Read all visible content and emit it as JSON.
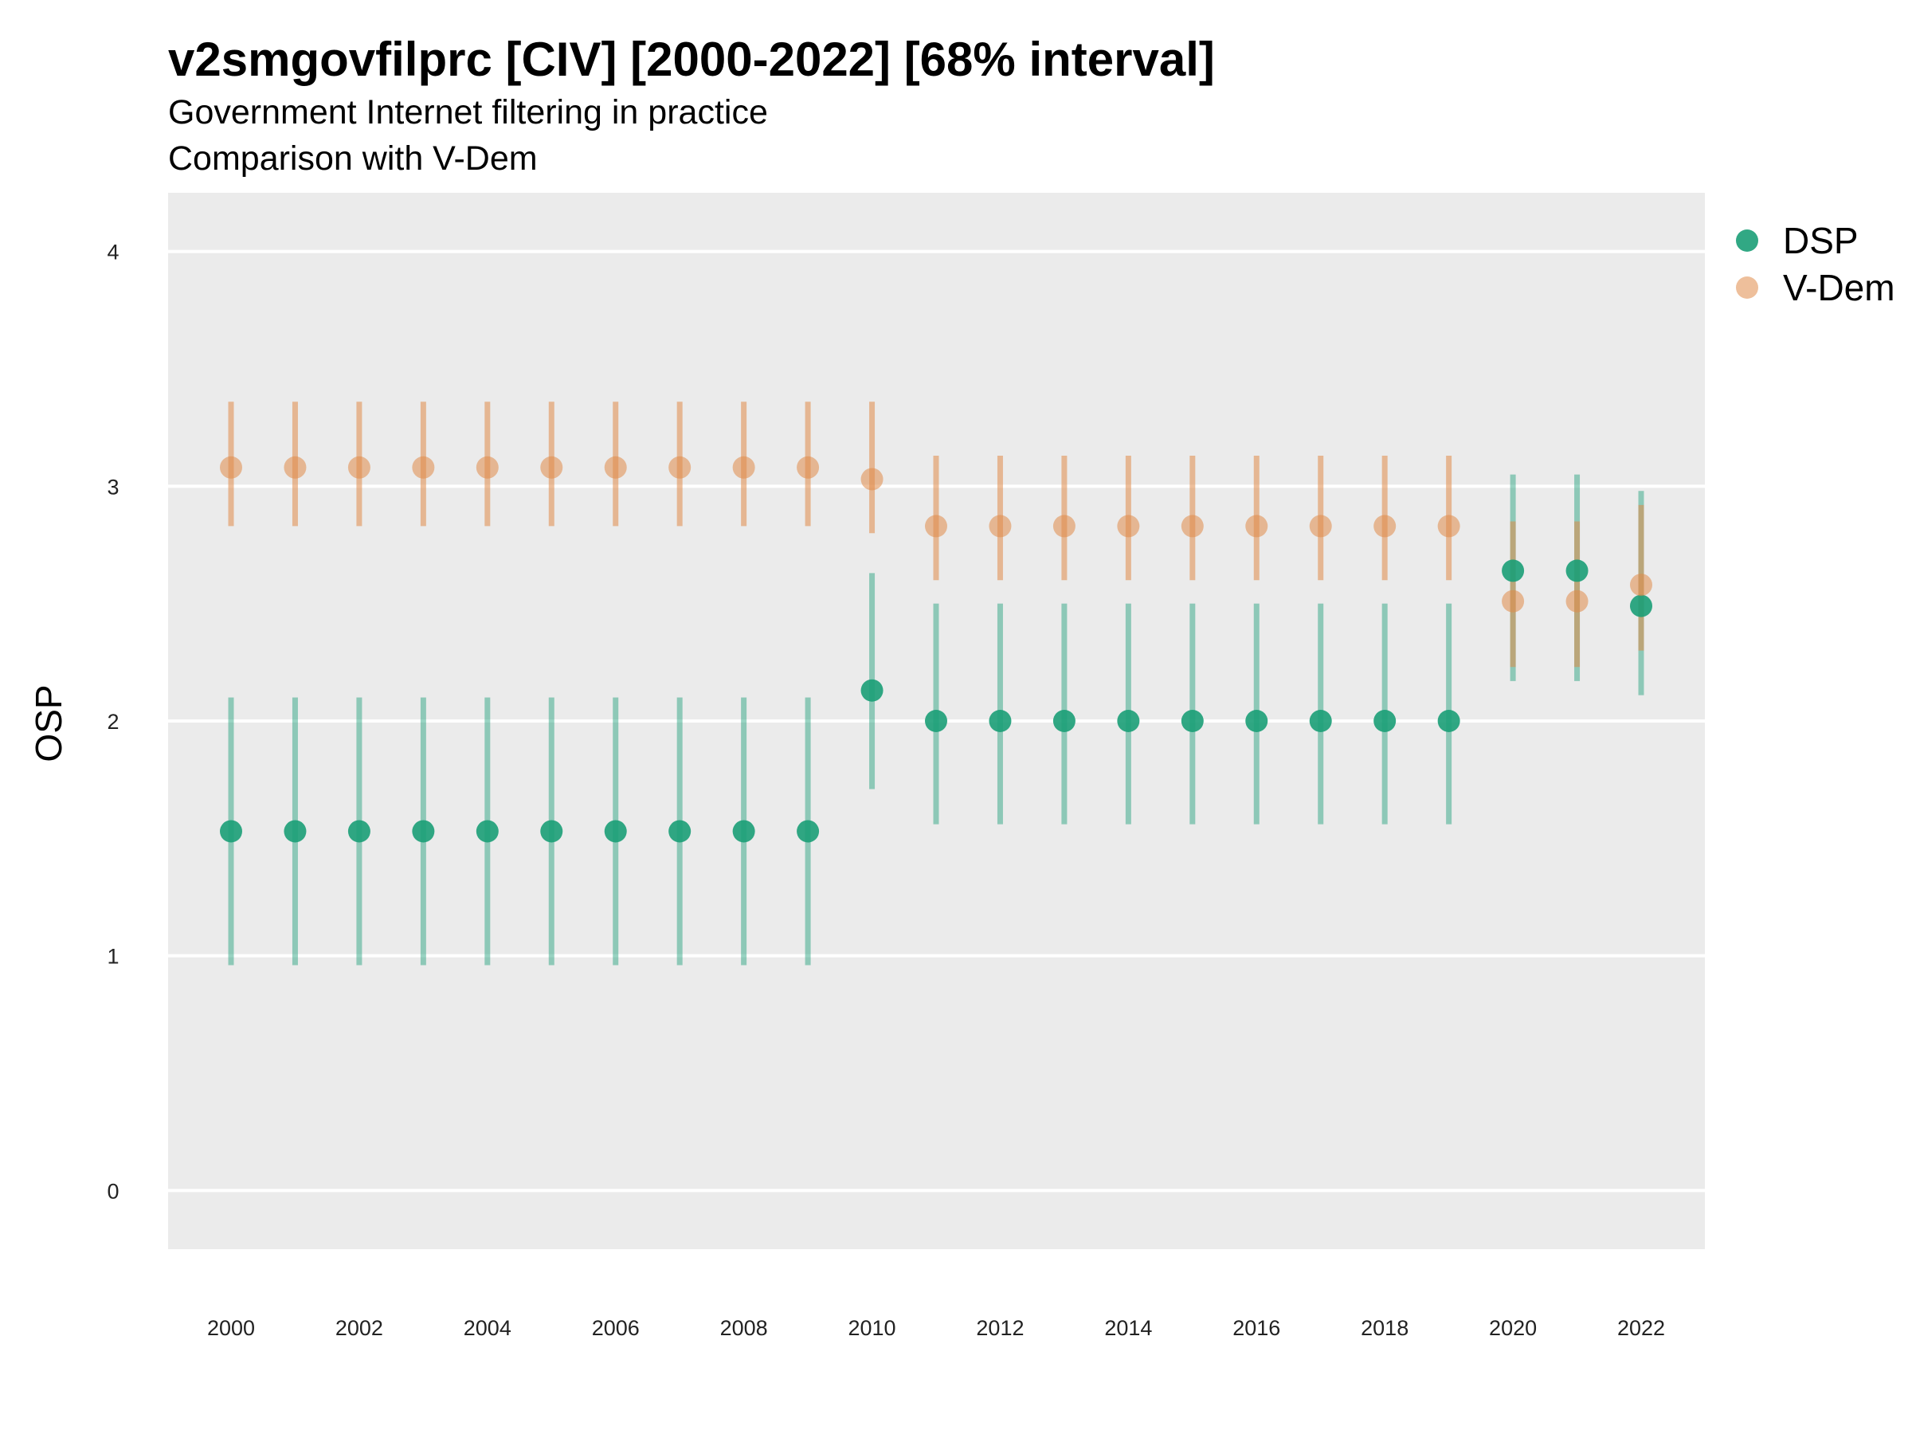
{
  "chart_data": {
    "type": "scatter",
    "title": "v2smgovfilprc [CIV] [2000-2022] [68% interval]",
    "subtitle_lines": [
      "Government Internet filtering in practice",
      "Comparison with V-Dem"
    ],
    "xlabel": "",
    "ylabel": "OSP",
    "x": [
      2000,
      2001,
      2002,
      2003,
      2004,
      2005,
      2006,
      2007,
      2008,
      2009,
      2010,
      2011,
      2012,
      2013,
      2014,
      2015,
      2016,
      2017,
      2018,
      2019,
      2020,
      2021,
      2022
    ],
    "x_ticks": [
      "2000",
      "2002",
      "2004",
      "2006",
      "2008",
      "2010",
      "2012",
      "2014",
      "2016",
      "2018",
      "2020",
      "2022"
    ],
    "y_ticks": [
      "0",
      "1",
      "2",
      "3",
      "4"
    ],
    "ylim": [
      -0.25,
      4.25
    ],
    "grid": true,
    "legend_position": "right",
    "series": [
      {
        "name": "DSP",
        "color": "#1b9e77",
        "values": [
          1.53,
          1.53,
          1.53,
          1.53,
          1.53,
          1.53,
          1.53,
          1.53,
          1.53,
          1.53,
          2.13,
          2.0,
          2.0,
          2.0,
          2.0,
          2.0,
          2.0,
          2.0,
          2.0,
          2.0,
          2.64,
          2.64,
          2.49
        ],
        "lower": [
          0.96,
          0.96,
          0.96,
          0.96,
          0.96,
          0.96,
          0.96,
          0.96,
          0.96,
          0.96,
          1.71,
          1.56,
          1.56,
          1.56,
          1.56,
          1.56,
          1.56,
          1.56,
          1.56,
          1.56,
          2.17,
          2.17,
          2.11
        ],
        "upper": [
          2.1,
          2.1,
          2.1,
          2.1,
          2.1,
          2.1,
          2.1,
          2.1,
          2.1,
          2.1,
          2.63,
          2.5,
          2.5,
          2.5,
          2.5,
          2.5,
          2.5,
          2.5,
          2.5,
          2.5,
          3.05,
          3.05,
          2.98
        ]
      },
      {
        "name": "V-Dem",
        "color": "#e08a48",
        "values": [
          3.08,
          3.08,
          3.08,
          3.08,
          3.08,
          3.08,
          3.08,
          3.08,
          3.08,
          3.08,
          3.03,
          2.83,
          2.83,
          2.83,
          2.83,
          2.83,
          2.83,
          2.83,
          2.83,
          2.83,
          2.51,
          2.51,
          2.58
        ],
        "lower": [
          2.83,
          2.83,
          2.83,
          2.83,
          2.83,
          2.83,
          2.83,
          2.83,
          2.83,
          2.83,
          2.8,
          2.6,
          2.6,
          2.6,
          2.6,
          2.6,
          2.6,
          2.6,
          2.6,
          2.6,
          2.23,
          2.23,
          2.3
        ],
        "upper": [
          3.36,
          3.36,
          3.36,
          3.36,
          3.36,
          3.36,
          3.36,
          3.36,
          3.36,
          3.36,
          3.36,
          3.13,
          3.13,
          3.13,
          3.13,
          3.13,
          3.13,
          3.13,
          3.13,
          3.13,
          2.85,
          2.85,
          2.92
        ]
      }
    ]
  }
}
